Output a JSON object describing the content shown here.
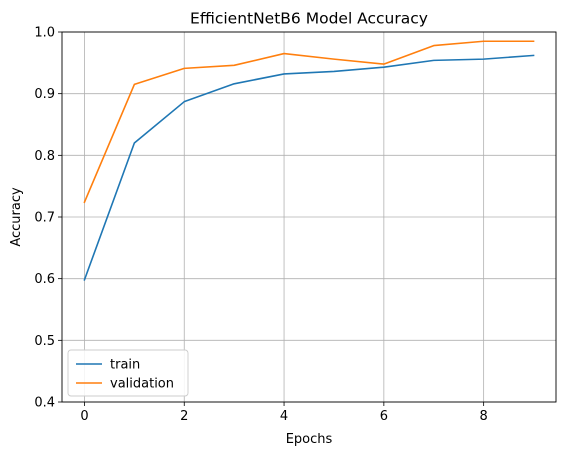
{
  "chart_data": {
    "type": "line",
    "title": "EfficientNetB6 Model Accuracy",
    "xlabel": "Epochs",
    "ylabel": "Accuracy",
    "xlim": [
      -0.45,
      9.45
    ],
    "ylim": [
      0.4,
      1.0
    ],
    "xticks": [
      0,
      2,
      4,
      6,
      8
    ],
    "yticks": [
      0.4,
      0.5,
      0.6,
      0.7,
      0.8,
      0.9,
      1.0
    ],
    "xtick_labels": [
      "0",
      "2",
      "4",
      "6",
      "8"
    ],
    "ytick_labels": [
      "0.4",
      "0.5",
      "0.6",
      "0.7",
      "0.8",
      "0.9",
      "1.0"
    ],
    "grid": true,
    "legend_position": "lower-left",
    "x": [
      0,
      1,
      2,
      3,
      4,
      5,
      6,
      7,
      8,
      9
    ],
    "series": [
      {
        "name": "train",
        "color": "#1f77b4",
        "values": [
          0.598,
          0.82,
          0.887,
          0.916,
          0.932,
          0.936,
          0.943,
          0.954,
          0.956,
          0.962
        ]
      },
      {
        "name": "validation",
        "color": "#ff7f0e",
        "values": [
          0.724,
          0.915,
          0.941,
          0.946,
          0.965,
          0.956,
          0.948,
          0.978,
          0.985,
          0.985
        ]
      }
    ]
  }
}
